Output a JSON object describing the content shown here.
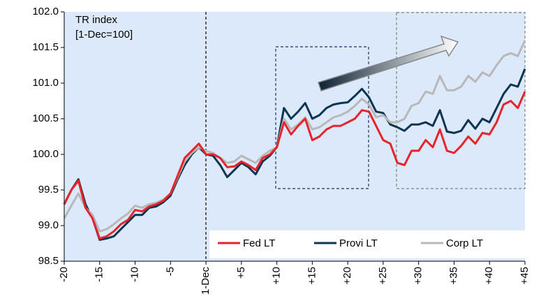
{
  "chart_data": {
    "type": "line",
    "annotations": [
      "TR index",
      "[1-Dec=100]"
    ],
    "x": [
      -20,
      -19,
      -18,
      -17,
      -16,
      -15,
      -14,
      -13,
      -12,
      -11,
      -10,
      -9,
      -8,
      -7,
      -6,
      -5,
      -4,
      -3,
      -2,
      -1,
      0,
      1,
      2,
      3,
      4,
      5,
      6,
      7,
      8,
      9,
      10,
      11,
      12,
      13,
      14,
      15,
      16,
      17,
      18,
      19,
      20,
      21,
      22,
      23,
      24,
      25,
      26,
      27,
      28,
      29,
      30,
      31,
      32,
      33,
      34,
      35,
      36,
      37,
      38,
      39,
      40,
      41,
      42,
      43,
      44,
      45
    ],
    "series": [
      {
        "name": "Fed LT",
        "color": "#e8232a",
        "values": [
          99.3,
          99.5,
          99.63,
          99.25,
          99.1,
          98.82,
          98.85,
          98.92,
          99.02,
          99.08,
          99.22,
          99.2,
          99.27,
          99.3,
          99.35,
          99.45,
          99.7,
          99.95,
          100.05,
          100.15,
          100.0,
          100.0,
          99.95,
          99.82,
          99.83,
          99.9,
          99.85,
          99.78,
          99.95,
          100.0,
          100.1,
          100.45,
          100.28,
          100.4,
          100.5,
          100.2,
          100.25,
          100.35,
          100.4,
          100.4,
          100.45,
          100.5,
          100.62,
          100.6,
          100.4,
          100.2,
          100.15,
          99.88,
          99.85,
          100.05,
          100.05,
          100.2,
          100.1,
          100.35,
          100.05,
          100.02,
          100.12,
          100.25,
          100.15,
          100.3,
          100.28,
          100.45,
          100.7,
          100.75,
          100.65,
          100.88
        ]
      },
      {
        "name": "Provi LT",
        "color": "#0d3552",
        "values": [
          99.3,
          99.5,
          99.65,
          99.3,
          99.1,
          98.8,
          98.82,
          98.85,
          98.95,
          99.05,
          99.15,
          99.15,
          99.25,
          99.27,
          99.33,
          99.42,
          99.65,
          99.85,
          100.0,
          100.1,
          100.0,
          99.98,
          99.85,
          99.68,
          99.78,
          99.88,
          99.82,
          99.72,
          99.9,
          99.98,
          100.1,
          100.65,
          100.5,
          100.6,
          100.72,
          100.5,
          100.55,
          100.65,
          100.7,
          100.72,
          100.73,
          100.82,
          100.92,
          100.8,
          100.6,
          100.58,
          100.42,
          100.38,
          100.33,
          100.42,
          100.42,
          100.45,
          100.4,
          100.62,
          100.32,
          100.3,
          100.33,
          100.48,
          100.36,
          100.5,
          100.45,
          100.65,
          100.85,
          100.98,
          100.95,
          101.2
        ]
      },
      {
        "name": "Corp LT",
        "color": "#b8b8b8",
        "values": [
          99.1,
          99.28,
          99.45,
          99.25,
          99.15,
          98.92,
          98.95,
          99.02,
          99.1,
          99.17,
          99.28,
          99.25,
          99.3,
          99.32,
          99.37,
          99.45,
          99.68,
          99.9,
          100.02,
          100.1,
          100.05,
          100.02,
          99.95,
          99.88,
          99.9,
          99.98,
          99.93,
          99.88,
          99.98,
          100.05,
          100.1,
          100.5,
          100.35,
          100.42,
          100.52,
          100.35,
          100.38,
          100.45,
          100.52,
          100.55,
          100.6,
          100.68,
          100.78,
          100.7,
          100.52,
          100.55,
          100.45,
          100.45,
          100.5,
          100.68,
          100.72,
          100.88,
          100.85,
          101.1,
          100.9,
          100.9,
          100.95,
          101.1,
          101.02,
          101.15,
          101.1,
          101.25,
          101.38,
          101.42,
          101.38,
          101.6
        ]
      }
    ],
    "xlim": [
      -20,
      45
    ],
    "xticks": [
      -20,
      -15,
      -10,
      -5,
      {
        "value": 0,
        "label": "1-Dec"
      },
      {
        "value": 5,
        "label": "+5"
      },
      {
        "value": 10,
        "label": "+10"
      },
      {
        "value": 15,
        "label": "+15"
      },
      {
        "value": 20,
        "label": "+20"
      },
      {
        "value": 25,
        "label": "+25"
      },
      {
        "value": 30,
        "label": "+30"
      },
      {
        "value": 35,
        "label": "+35"
      },
      {
        "value": 40,
        "label": "+40"
      },
      {
        "value": 45,
        "label": "+45"
      }
    ],
    "ylim": [
      98.5,
      102.0
    ],
    "yticks": [
      98.5,
      {
        "value": 99,
        "label": "99.0"
      },
      99.5,
      {
        "value": 100,
        "label": "100.0"
      },
      100.5,
      {
        "value": 101,
        "label": "101.0"
      },
      101.5,
      {
        "value": 102,
        "label": "102.0"
      }
    ],
    "grid": false,
    "legend": "lower right"
  }
}
